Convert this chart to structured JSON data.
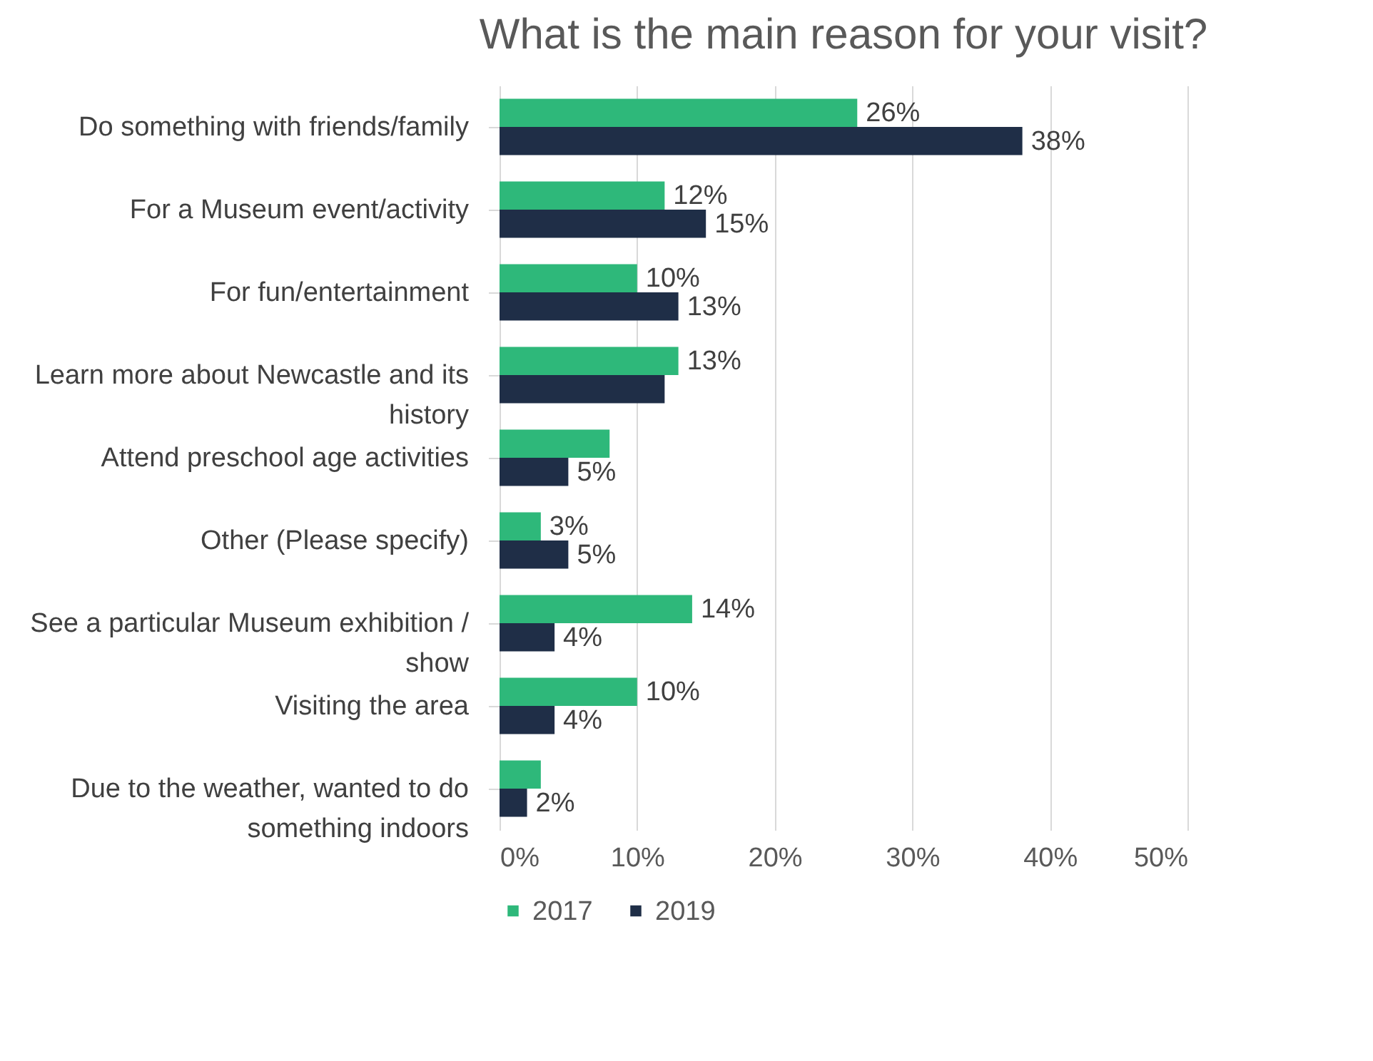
{
  "chart_data": {
    "type": "bar",
    "orientation": "horizontal",
    "title": "What is the main reason for your visit?",
    "categories": [
      "Do something with friends/family",
      "For a Museum event/activity",
      "For fun/entertainment",
      "Learn more about Newcastle and its history",
      "Attend preschool age activities",
      "Other (Please specify)",
      "See a particular Museum exhibition / show",
      "Visiting the area",
      "Due to the weather, wanted to do something indoors"
    ],
    "series": [
      {
        "name": "2017",
        "color": "#2eb87a",
        "values": [
          26,
          12,
          10,
          13,
          8,
          3,
          14,
          10,
          3
        ],
        "value_labels": [
          "26%",
          "12%",
          "10%",
          "13%",
          null,
          "3%",
          "14%",
          "10%",
          null
        ]
      },
      {
        "name": "2019",
        "color": "#1f2e47",
        "values": [
          38,
          15,
          13,
          12,
          5,
          5,
          4,
          4,
          2
        ],
        "value_labels": [
          "38%",
          "15%",
          "13%",
          null,
          "5%",
          "5%",
          "4%",
          "4%",
          "2%"
        ]
      }
    ],
    "xlim": [
      0,
      50
    ],
    "xticks": [
      {
        "value": 0,
        "label": "0%"
      },
      {
        "value": 10,
        "label": "10%"
      },
      {
        "value": 20,
        "label": "20%"
      },
      {
        "value": 30,
        "label": "30%"
      },
      {
        "value": 40,
        "label": "40%"
      },
      {
        "value": 50,
        "label": "50%"
      }
    ],
    "grid": "x",
    "legend": "bottom"
  }
}
